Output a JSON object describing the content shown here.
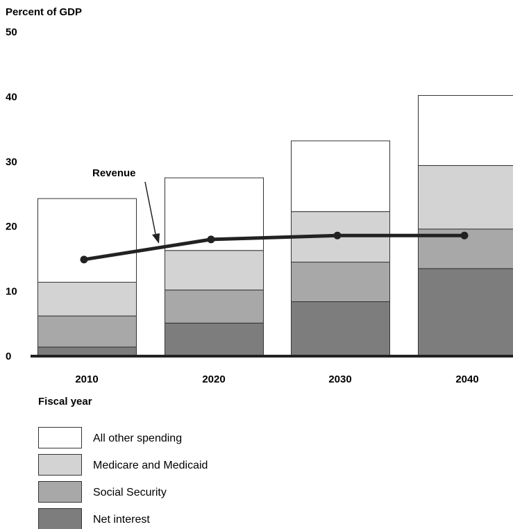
{
  "chart_data": {
    "type": "bar",
    "stacked": true,
    "title": "",
    "ylabel": "Percent of GDP",
    "xlabel": "Fiscal year",
    "ylim": [
      0,
      50
    ],
    "yticks": [
      0,
      10,
      20,
      30,
      40,
      50
    ],
    "categories": [
      "2010",
      "2020",
      "2030",
      "2040"
    ],
    "series": [
      {
        "name": "Net interest",
        "values": [
          1.4,
          5.1,
          8.4,
          13.5
        ],
        "color": "#7d7d7d"
      },
      {
        "name": "Social Security",
        "values": [
          4.8,
          5.1,
          6.1,
          6.1
        ],
        "color": "#a8a8a8"
      },
      {
        "name": "Medicare and Medicaid",
        "values": [
          5.2,
          6.1,
          7.8,
          9.8
        ],
        "color": "#d3d3d3"
      },
      {
        "name": "All other spending",
        "values": [
          12.9,
          11.2,
          10.9,
          10.8
        ],
        "color": "#ffffff"
      }
    ],
    "line_series": {
      "name": "Revenue",
      "values": [
        14.9,
        18.0,
        18.6,
        18.6
      ],
      "color": "#222222"
    },
    "annotations": [
      {
        "text": "Revenue",
        "target": "line"
      }
    ],
    "legend_position": "bottom-left",
    "grid": false
  }
}
